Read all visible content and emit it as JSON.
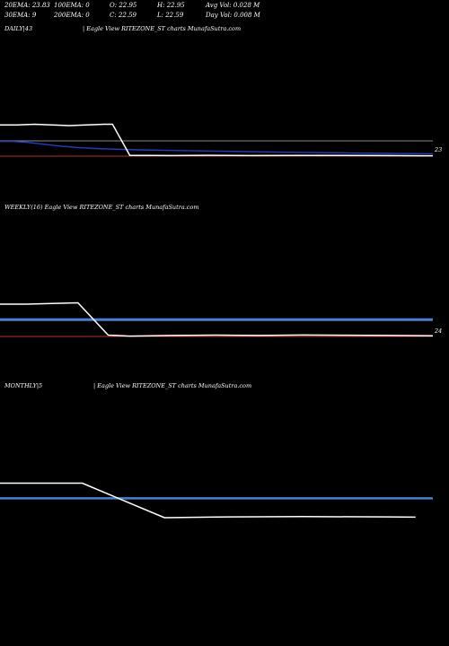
{
  "stats": {
    "rows": [
      [
        "20EMA: 23.83",
        "100EMA: 0",
        "O: 22.95",
        "H: 22.95",
        "Avg Vol: 0.028  M"
      ],
      [
        "30EMA: 9",
        "200EMA: 0",
        "C: 22.59",
        "L: 22.59",
        "Day Vol: 0.008  M"
      ]
    ]
  },
  "colors": {
    "background": "#000000",
    "price": "#ffffff",
    "price_recent": "#f6eec4",
    "ema_short": "#1f3fc0",
    "ema_flat": "#4a7fd6",
    "level_red": "#b3331a",
    "gray_level": "#8a8a8a",
    "volume_blue": "#1a33cc"
  },
  "chart_data": [
    {
      "type": "line",
      "title": "DAILY|43",
      "caption": "| Eagle   View  RITEZONE_ST charts MunafaSutra.com",
      "end_label": "23",
      "x_range": [
        0,
        100
      ],
      "y_range": [
        0,
        100
      ],
      "series": [
        {
          "role": "price",
          "color": "#ffffff",
          "x": [
            0,
            4,
            8,
            12,
            16,
            20,
            24,
            26,
            30,
            34,
            40,
            48,
            58,
            68,
            78,
            88,
            98,
            100
          ],
          "values": [
            47,
            47,
            48,
            47,
            46,
            47,
            48,
            48,
            1,
            1,
            0.8,
            1.2,
            0.8,
            1.1,
            0.9,
            0.8,
            0.5,
            0.5
          ]
        },
        {
          "role": "ema",
          "color": "#1f3fc0",
          "x": [
            0,
            3,
            6,
            10,
            14,
            18,
            22,
            26,
            32,
            40,
            50,
            60,
            70,
            80,
            90,
            100
          ],
          "values": [
            22,
            22,
            21,
            18,
            15,
            13,
            11.5,
            10.5,
            9.5,
            8.5,
            7.5,
            6.5,
            5.5,
            4.8,
            4.0,
            3.5
          ]
        },
        {
          "role": "level",
          "color": "#8a8a8a",
          "x": [
            0,
            100
          ],
          "values": [
            23,
            23
          ]
        },
        {
          "role": "level",
          "color": "#b3331a",
          "x": [
            0,
            100
          ],
          "values": [
            0,
            0
          ]
        }
      ]
    },
    {
      "type": "line",
      "title": "WEEKLY(16) Eagle   View  RITEZONE_ST charts MunafaSutra.com",
      "end_label": "24",
      "x_range": [
        0,
        100
      ],
      "y_range": [
        0,
        100
      ],
      "series": [
        {
          "role": "price",
          "color": "#ffffff",
          "x": [
            0,
            6,
            12,
            18,
            25,
            30,
            40,
            50,
            60,
            70,
            80,
            90,
            100
          ],
          "values": [
            48,
            48,
            49,
            50,
            2,
            0.5,
            1.5,
            2.0,
            1.5,
            2.2,
            1.8,
            1.4,
            1.0
          ]
        },
        {
          "role": "ema",
          "color": "#4a7fd6",
          "x": [
            0,
            100
          ],
          "values": [
            25,
            25
          ]
        },
        {
          "role": "level",
          "color": "#b3331a",
          "x": [
            0,
            100
          ],
          "values": [
            0,
            0
          ]
        }
      ]
    },
    {
      "type": "line",
      "title": "MONTHLY|5",
      "caption": "| Eagle   View  RITEZONE_ST charts MunafaSutra.com",
      "x_range": [
        0,
        100
      ],
      "y_range": [
        0,
        100
      ],
      "series": [
        {
          "role": "price",
          "color": "#ffffff",
          "x": [
            0,
            19,
            38,
            50,
            70,
            90,
            96
          ],
          "values": [
            50,
            50,
            0,
            1,
            1.5,
            1.2,
            0.8
          ]
        },
        {
          "role": "ema",
          "color": "#4a7fd6",
          "x": [
            0,
            100
          ],
          "values": [
            28,
            28
          ]
        }
      ]
    }
  ]
}
